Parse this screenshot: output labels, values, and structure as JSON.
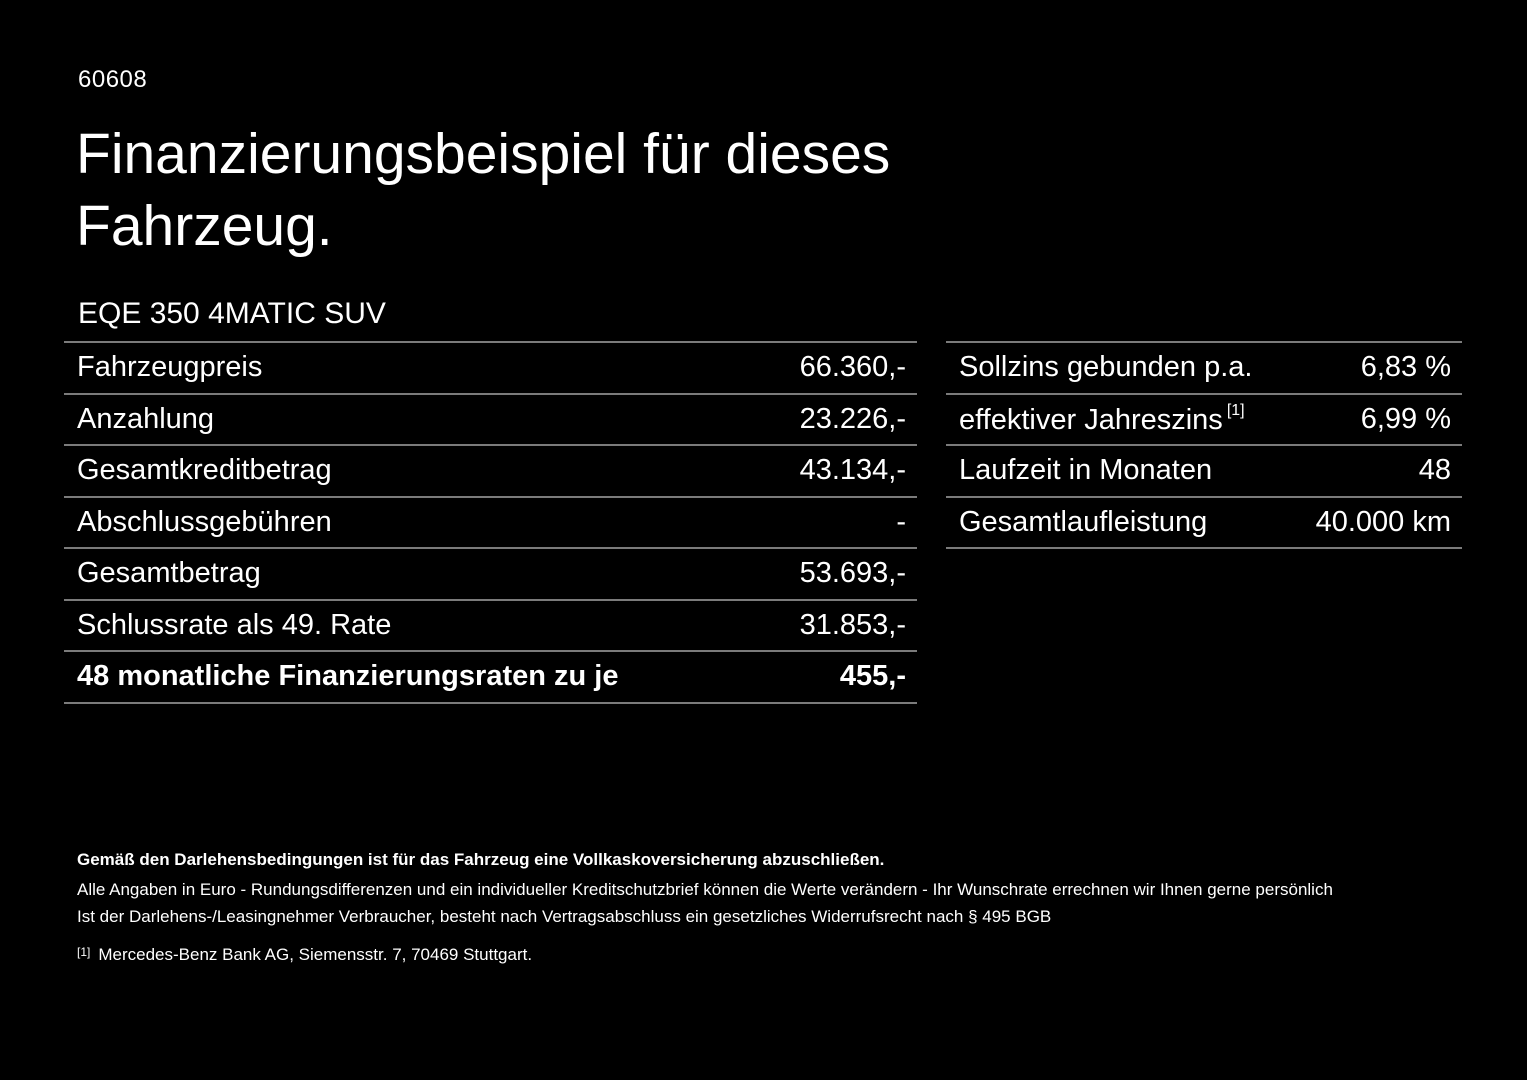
{
  "page": {
    "doc_number": "60608",
    "title": "Finanzierungsbeispiel für dieses Fahrzeug.",
    "vehicle_model": "EQE 350 4MATIC SUV"
  },
  "left_table": {
    "rows": [
      {
        "label": "Fahrzeugpreis",
        "value": "66.360,-"
      },
      {
        "label": "Anzahlung",
        "value": "23.226,-"
      },
      {
        "label": "Gesamtkreditbetrag",
        "value": "43.134,-"
      },
      {
        "label": "Abschlussgebühren",
        "value": "-"
      },
      {
        "label": "Gesamtbetrag",
        "value": "53.693,-"
      },
      {
        "label": "Schlussrate als 49. Rate",
        "value": "31.853,-"
      },
      {
        "label": "48 monatliche Finanzierungsraten zu je",
        "value": "455,-"
      }
    ]
  },
  "right_table": {
    "rows": [
      {
        "label": "Sollzins gebunden p.a.",
        "value": "6,83 %"
      },
      {
        "label": "effektiver Jahreszins",
        "marker": "[1]",
        "value": "6,99 %"
      },
      {
        "label": "Laufzeit in Monaten",
        "value": "48"
      },
      {
        "label": "Gesamtlaufleistung",
        "value": "40.000 km"
      }
    ]
  },
  "footnotes": {
    "bold_note": "Gemäß den Darlehensbedingungen ist für das Fahrzeug eine Vollkaskoversicherung abzuschließen.",
    "note1": "Alle Angaben in Euro - Rundungsdifferenzen und ein individueller Kreditschutzbrief können die Werte verändern - Ihr Wunschrate errechnen wir Ihnen gerne persönlich",
    "note2": "Ist der Darlehens-/Leasingnehmer Verbraucher, besteht nach Vertragsabschluss ein gesetzliches Widerrufsrecht nach § 495 BGB",
    "ref_marker": "[1]",
    "ref_text": "Mercedes-Benz Bank AG, Siemensstr. 7, 70469 Stuttgart."
  }
}
